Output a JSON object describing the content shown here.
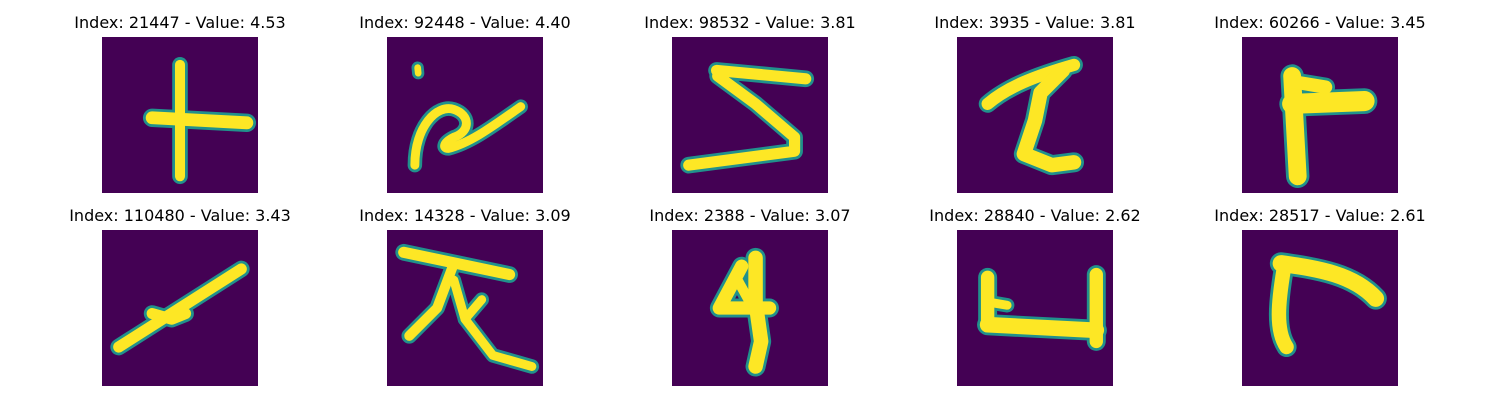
{
  "figure": {
    "background_color": "#440154",
    "stroke_color": "#fde725",
    "edge_color": "#21918c",
    "panels": [
      {
        "index": "21447",
        "value": "4.53",
        "title": "Index: 21447 - Value: 4.53",
        "glyph": "plus-cross"
      },
      {
        "index": "92448",
        "value": "4.40",
        "title": "Index: 92448 - Value: 4.40",
        "glyph": "cursive-stroke"
      },
      {
        "index": "98532",
        "value": "3.81",
        "title": "Index: 98532 - Value: 3.81",
        "glyph": "zigzag"
      },
      {
        "index": "3935",
        "value": "3.81",
        "title": "Index: 3935 - Value: 3.81",
        "glyph": "z-shape"
      },
      {
        "index": "60266",
        "value": "3.45",
        "title": "Index: 60266 - Value: 3.45",
        "glyph": "t-blob"
      },
      {
        "index": "110480",
        "value": "3.43",
        "title": "Index: 110480 - Value: 3.43",
        "glyph": "diagonal-cross"
      },
      {
        "index": "14328",
        "value": "3.09",
        "title": "Index: 14328 - Value: 3.09",
        "glyph": "fork"
      },
      {
        "index": "2388",
        "value": "3.07",
        "title": "Index: 2388 - Value: 3.07",
        "glyph": "digit-four"
      },
      {
        "index": "28840",
        "value": "2.62",
        "title": "Index: 28840 - Value: 2.62",
        "glyph": "bracket"
      },
      {
        "index": "28517",
        "value": "2.61",
        "title": "Index: 28517 - Value: 2.61",
        "glyph": "corner"
      }
    ]
  }
}
